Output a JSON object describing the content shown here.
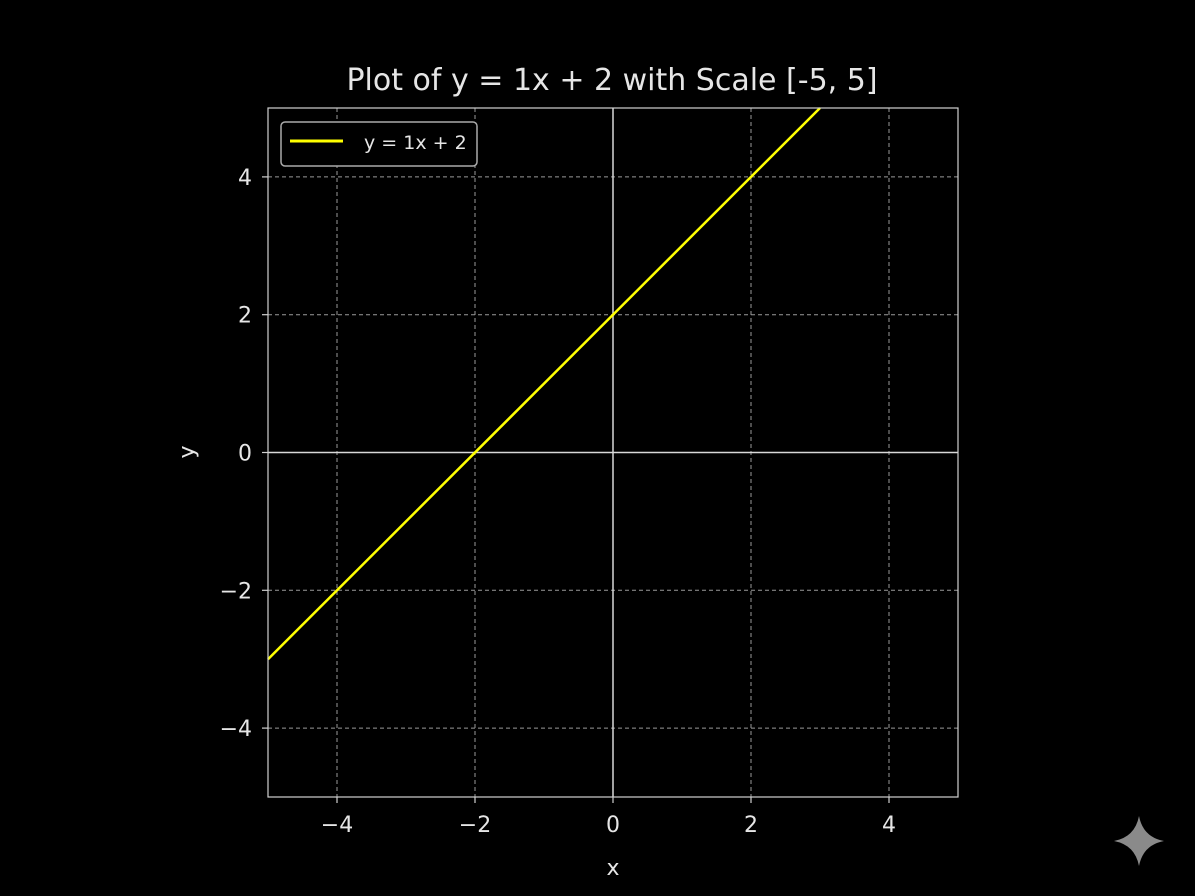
{
  "chart_data": {
    "type": "line",
    "title": "Plot of y = 1x + 2 with Scale [-5, 5]",
    "xlabel": "x",
    "ylabel": "y",
    "xlim": [
      -5,
      5
    ],
    "ylim": [
      -5,
      5
    ],
    "xticks": [
      -4,
      -2,
      0,
      2,
      4
    ],
    "yticks": [
      -4,
      -2,
      0,
      2,
      4
    ],
    "xtick_labels": [
      "−4",
      "−2",
      "0",
      "2",
      "4"
    ],
    "ytick_labels": [
      "−4",
      "−2",
      "0",
      "2",
      "4"
    ],
    "grid": true,
    "axes_lines_at_zero": true,
    "legend_placement": "top-left",
    "series": [
      {
        "name": "y = 1x + 2",
        "color": "#ffff00",
        "slope": 1,
        "intercept": 2,
        "x": [
          -5,
          3
        ],
        "y": [
          -3,
          5
        ]
      }
    ],
    "background": "#000000",
    "watermark_icon": "sparkle-icon"
  }
}
